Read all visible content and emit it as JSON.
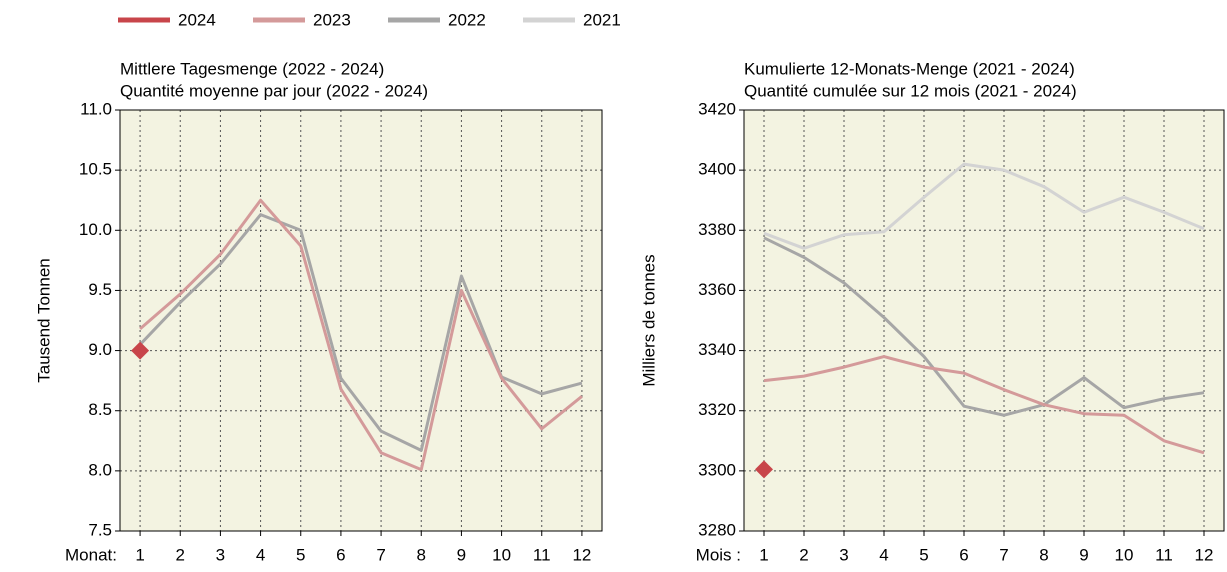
{
  "chart_data": [
    {
      "type": "line",
      "title": [
        "Mittlere Tagesmenge (2022 - 2024)",
        "Quantité moyenne par jour (2022 - 2024)"
      ],
      "ylabel": "Tausend Tonnen",
      "xlabel": "Monat:",
      "categories": [
        "1",
        "2",
        "3",
        "4",
        "5",
        "6",
        "7",
        "8",
        "9",
        "10",
        "11",
        "12"
      ],
      "ylim": [
        7.5,
        11.0
      ],
      "yticks": [
        7.5,
        {
          "value": 8.0,
          "label": "8.0"
        },
        8.5,
        {
          "value": 9.0,
          "label": "9.0"
        },
        9.5,
        {
          "value": 10.0,
          "label": "10.0"
        },
        10.5,
        {
          "value": 11.0,
          "label": "11.0"
        }
      ],
      "grid": true,
      "background": "#f3f3e1",
      "series": [
        {
          "name": "2024",
          "color": "#c8454a",
          "marker": "diamond",
          "values": [
            9.0,
            null,
            null,
            null,
            null,
            null,
            null,
            null,
            null,
            null,
            null,
            null
          ]
        },
        {
          "name": "2023",
          "color": "#d49a9a",
          "values": [
            9.18,
            9.47,
            9.8,
            10.25,
            9.87,
            8.68,
            8.15,
            8.01,
            9.5,
            8.77,
            8.35,
            8.62
          ]
        },
        {
          "name": "2022",
          "color": "#a6a6a6",
          "values": [
            9.05,
            9.4,
            9.72,
            10.13,
            10.0,
            8.77,
            8.33,
            8.17,
            9.62,
            8.78,
            8.64,
            8.73
          ]
        }
      ]
    },
    {
      "type": "line",
      "title": [
        "Kumulierte 12-Monats-Menge (2021 - 2024)",
        "Quantité cumulée sur 12 mois (2021 - 2024)"
      ],
      "ylabel": "Milliers de tonnes",
      "xlabel": "Mois :",
      "categories": [
        "1",
        "2",
        "3",
        "4",
        "5",
        "6",
        "7",
        "8",
        "9",
        "10",
        "11",
        "12"
      ],
      "ylim": [
        3280,
        3420
      ],
      "yticks": [
        3280,
        3300,
        3320,
        3340,
        3360,
        3380,
        3400,
        3420
      ],
      "grid": true,
      "background": "#f3f3e1",
      "series": [
        {
          "name": "2024",
          "color": "#c8454a",
          "marker": "diamond",
          "values": [
            3300.5,
            null,
            null,
            null,
            null,
            null,
            null,
            null,
            null,
            null,
            null,
            null
          ]
        },
        {
          "name": "2023",
          "color": "#d49a9a",
          "values": [
            3330,
            3331.5,
            3334.5,
            3338,
            3334.5,
            3332.5,
            3327,
            3322,
            3319,
            3318.5,
            3310,
            3306
          ]
        },
        {
          "name": "2022",
          "color": "#a6a6a6",
          "values": [
            3377.5,
            3371,
            3362.5,
            3351,
            3338,
            3321.5,
            3318.5,
            3322,
            3331,
            3321,
            3324,
            3326
          ]
        },
        {
          "name": "2021",
          "color": "#d3d3d3",
          "values": [
            3379,
            3374,
            3378.5,
            3379.5,
            3391,
            3402,
            3400,
            3394.5,
            3386,
            3391,
            3386,
            3380.5
          ]
        }
      ]
    }
  ]
}
